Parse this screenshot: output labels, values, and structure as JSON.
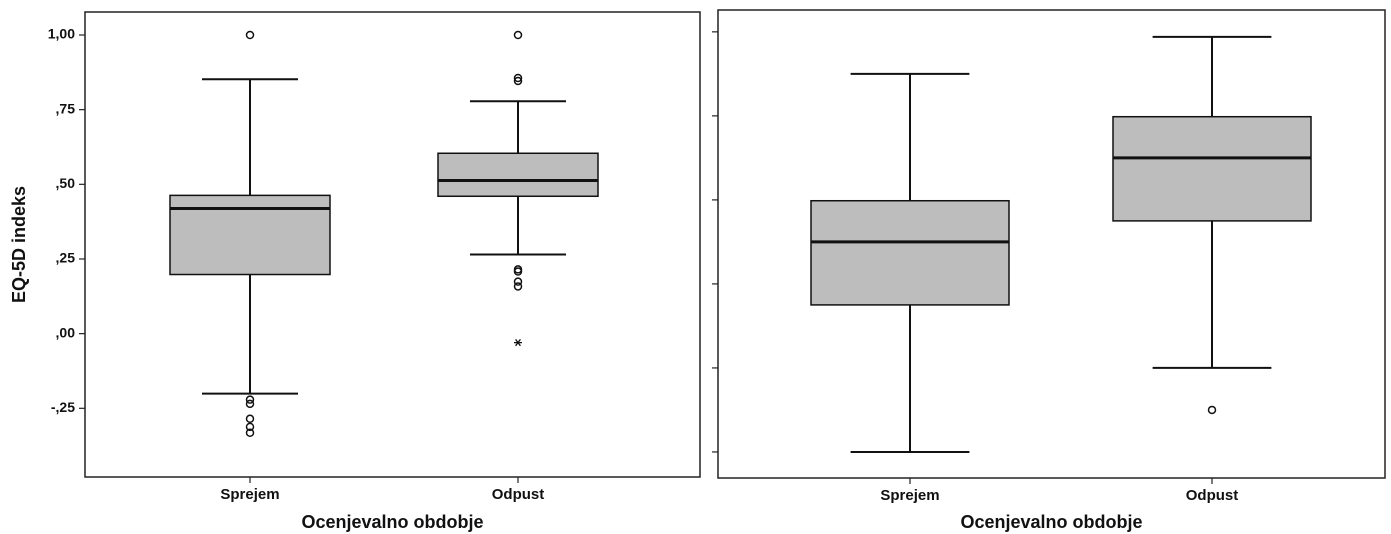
{
  "chart_data": [
    {
      "type": "box",
      "ylabel": "EQ-5D indeks",
      "xlabel": "Ocenjevalno obdobje",
      "categories": [
        "Sprejem",
        "Odpust"
      ],
      "color": "#bdbdbd",
      "ylim": [
        -0.48,
        1.077
      ],
      "yticks": [
        {
          "value": 1,
          "label": "1,00"
        },
        {
          "value": 0.75,
          "label": ",75"
        },
        {
          "value": 0.5,
          "label": ",50"
        },
        {
          "value": 0.25,
          "label": ",25"
        },
        {
          "value": 0,
          "label": ",00"
        },
        {
          "value": -0.25,
          "label": "-,25"
        }
      ],
      "tick_labels": true,
      "whisker_low": [
        -0.201,
        0.265
      ],
      "q1": [
        0.198,
        0.46
      ],
      "median": [
        0.419,
        0.513
      ],
      "q3": [
        0.463,
        0.604
      ],
      "whisker_high": [
        0.852,
        0.778
      ],
      "outliers": [
        [
          1.0,
          -0.221,
          -0.235,
          -0.285,
          -0.312,
          -0.332
        ],
        [
          1.0,
          0.856,
          0.846,
          0.215,
          0.208,
          0.174,
          0.158
        ]
      ],
      "extremes": [
        [],
        [
          -0.03
        ]
      ]
    },
    {
      "type": "box",
      "xlabel": "Ocenjevalno obdobje",
      "categories": [
        "Sprejem",
        "Odpust"
      ],
      "color": "#bdbdbd",
      "ylim": [
        -0.31,
        5.26
      ],
      "yticks": [
        0,
        1,
        2,
        3,
        4,
        5
      ],
      "tick_labels": false,
      "whisker_low": [
        0,
        1.0
      ],
      "q1": [
        1.75,
        2.75
      ],
      "median": [
        2.5,
        3.5
      ],
      "q3": [
        2.99,
        3.99
      ],
      "whisker_high": [
        4.5,
        4.94
      ],
      "outliers": [
        [],
        [
          0.5
        ]
      ],
      "extremes": [
        [],
        []
      ]
    }
  ]
}
